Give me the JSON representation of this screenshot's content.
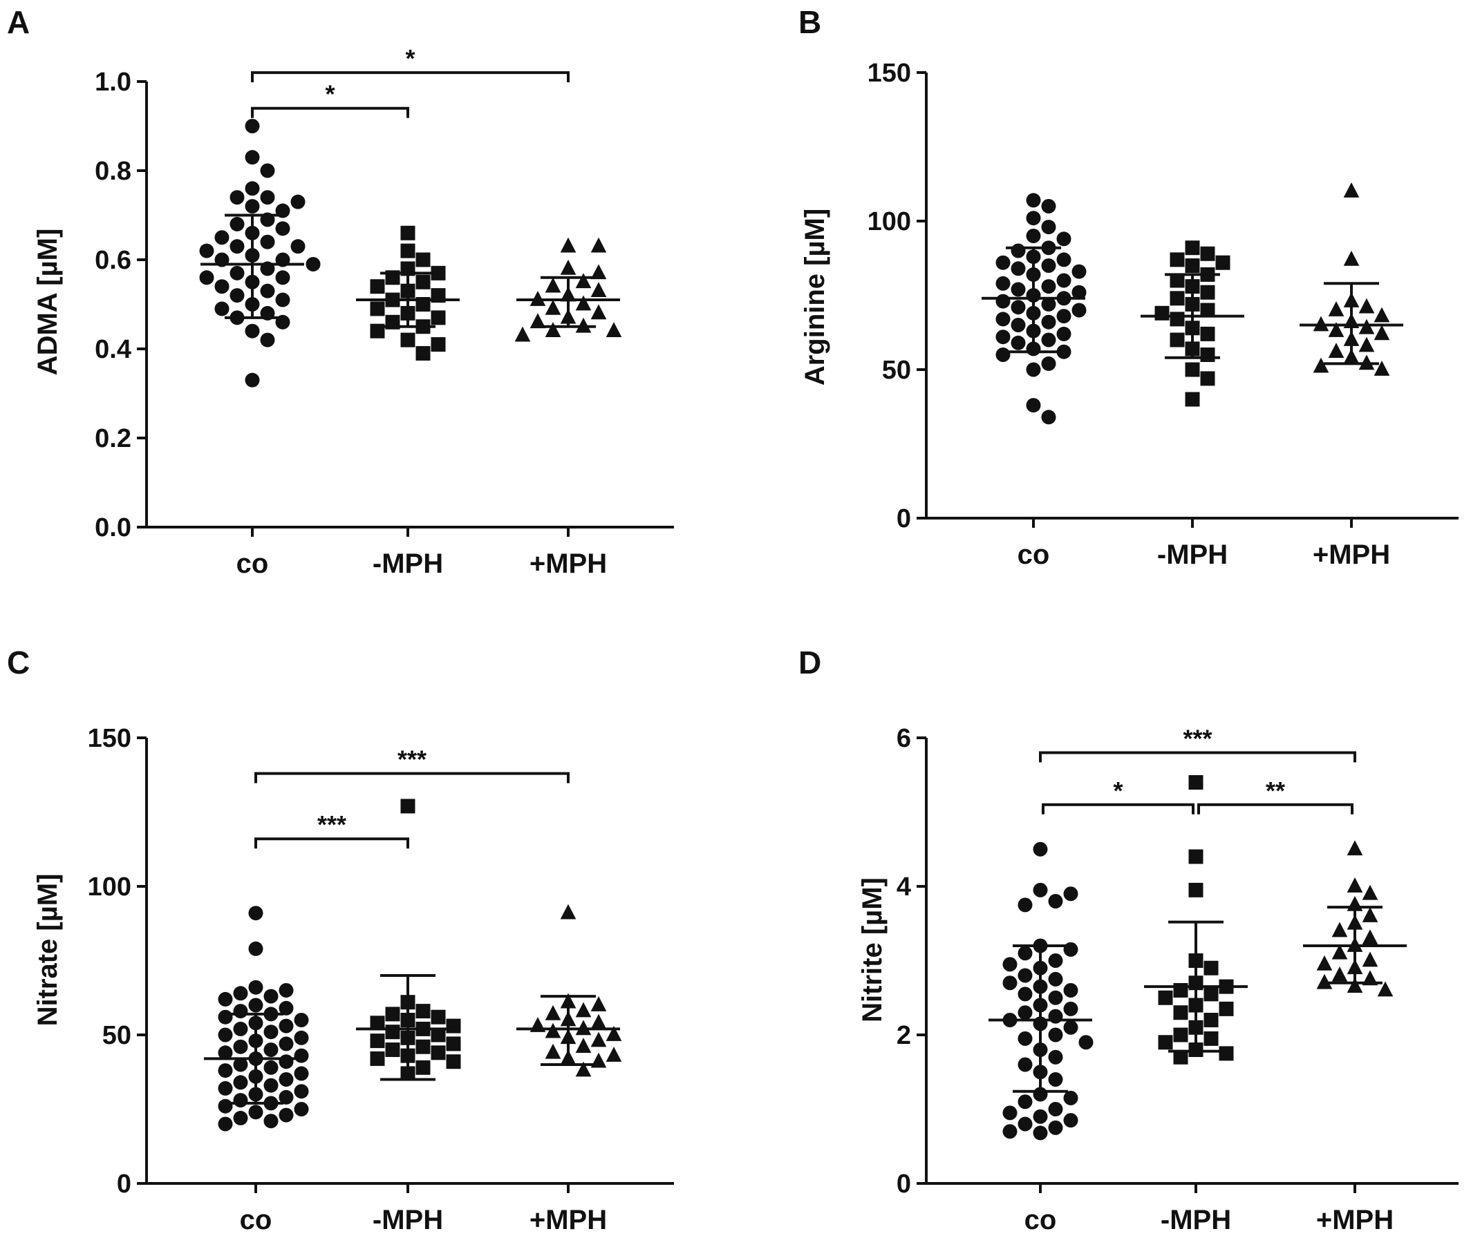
{
  "chart_data": [
    {
      "type": "scatter",
      "panel": "A",
      "ylabel": "ADMA [µM]",
      "xlabel": "",
      "ylim": [
        0,
        1.0
      ],
      "yticks": [
        0.0,
        0.2,
        0.4,
        0.6,
        0.8,
        1.0
      ],
      "ytick_labels": [
        "0.0",
        "0.2",
        "0.4",
        "0.6",
        "0.8",
        "1.0"
      ],
      "categories": [
        "co",
        "-MPH",
        "+MPH"
      ],
      "series": [
        {
          "name": "co",
          "marker": "circle",
          "values": [
            0.9,
            0.83,
            0.8,
            0.76,
            0.74,
            0.74,
            0.73,
            0.72,
            0.71,
            0.69,
            0.68,
            0.67,
            0.66,
            0.65,
            0.64,
            0.63,
            0.63,
            0.62,
            0.61,
            0.6,
            0.6,
            0.59,
            0.58,
            0.57,
            0.56,
            0.56,
            0.55,
            0.54,
            0.53,
            0.52,
            0.51,
            0.5,
            0.49,
            0.48,
            0.47,
            0.46,
            0.44,
            0.42,
            0.33
          ],
          "mean": 0.59,
          "sd_low": 0.47,
          "sd_high": 0.7
        },
        {
          "name": "-MPH",
          "marker": "square",
          "values": [
            0.66,
            0.62,
            0.6,
            0.58,
            0.57,
            0.56,
            0.55,
            0.54,
            0.53,
            0.52,
            0.51,
            0.5,
            0.49,
            0.48,
            0.47,
            0.46,
            0.45,
            0.44,
            0.42,
            0.41,
            0.39
          ],
          "mean": 0.51,
          "sd_low": 0.45,
          "sd_high": 0.57
        },
        {
          "name": "+MPH",
          "marker": "triangle",
          "values": [
            0.63,
            0.63,
            0.58,
            0.57,
            0.55,
            0.54,
            0.53,
            0.52,
            0.51,
            0.5,
            0.49,
            0.48,
            0.47,
            0.46,
            0.45,
            0.44,
            0.44,
            0.43
          ],
          "mean": 0.51,
          "sd_low": 0.45,
          "sd_high": 0.56
        }
      ],
      "significance": [
        {
          "from": "co",
          "to": "-MPH",
          "label": "*",
          "y": 0.94
        },
        {
          "from": "co",
          "to": "+MPH",
          "label": "*",
          "y": 1.02
        }
      ]
    },
    {
      "type": "scatter",
      "panel": "B",
      "ylabel": "Arginine [µM]",
      "xlabel": "",
      "ylim": [
        0,
        150
      ],
      "yticks": [
        0,
        50,
        100,
        150
      ],
      "ytick_labels": [
        "0",
        "50",
        "100",
        "150"
      ],
      "categories": [
        "co",
        "-MPH",
        "+MPH"
      ],
      "series": [
        {
          "name": "co",
          "marker": "circle",
          "values": [
            107,
            105,
            101,
            98,
            95,
            94,
            91,
            90,
            88,
            87,
            86,
            85,
            84,
            83,
            82,
            80,
            79,
            78,
            77,
            76,
            75,
            74,
            73,
            72,
            71,
            70,
            69,
            68,
            67,
            66,
            65,
            63,
            62,
            61,
            60,
            59,
            57,
            56,
            55,
            52,
            50,
            38,
            34
          ],
          "mean": 74,
          "sd_low": 56,
          "sd_high": 91
        },
        {
          "name": "-MPH",
          "marker": "square",
          "values": [
            91,
            89,
            87,
            86,
            85,
            82,
            80,
            78,
            76,
            74,
            72,
            70,
            69,
            67,
            64,
            62,
            60,
            57,
            55,
            50,
            47,
            40
          ],
          "mean": 68,
          "sd_low": 54,
          "sd_high": 82
        },
        {
          "name": "+MPH",
          "marker": "triangle",
          "values": [
            110,
            87,
            73,
            71,
            70,
            68,
            66,
            65,
            64,
            63,
            62,
            60,
            58,
            56,
            54,
            52,
            51,
            50
          ],
          "mean": 65,
          "sd_low": 52,
          "sd_high": 79
        }
      ],
      "significance": []
    },
    {
      "type": "scatter",
      "panel": "C",
      "ylabel": "Nitrate [µM]",
      "xlabel": "",
      "ylim": [
        0,
        150
      ],
      "yticks": [
        0,
        50,
        100,
        150
      ],
      "ytick_labels": [
        "0",
        "50",
        "100",
        "150"
      ],
      "categories": [
        "co",
        "-MPH",
        "+MPH"
      ],
      "series": [
        {
          "name": "co",
          "marker": "circle",
          "values": [
            91,
            79,
            66,
            65,
            64,
            63,
            62,
            60,
            59,
            58,
            57,
            56,
            55,
            54,
            53,
            52,
            51,
            50,
            49,
            48,
            47,
            46,
            45,
            44,
            43,
            42,
            41,
            40,
            39,
            38,
            37,
            36,
            35,
            34,
            33,
            32,
            31,
            30,
            29,
            28,
            27,
            26,
            25,
            24,
            23,
            22,
            21,
            20
          ],
          "mean": 42,
          "sd_low": 27,
          "sd_high": 57
        },
        {
          "name": "-MPH",
          "marker": "square",
          "values": [
            127,
            61,
            58,
            57,
            56,
            55,
            54,
            53,
            52,
            51,
            50,
            49,
            48,
            47,
            46,
            45,
            44,
            43,
            42,
            41,
            39,
            37
          ],
          "mean": 52,
          "sd_low": 35,
          "sd_high": 70
        },
        {
          "name": "+MPH",
          "marker": "triangle",
          "values": [
            91,
            61,
            60,
            58,
            57,
            55,
            54,
            53,
            52,
            51,
            50,
            49,
            48,
            46,
            44,
            43,
            42,
            41,
            38
          ],
          "mean": 52,
          "sd_low": 40,
          "sd_high": 63
        }
      ],
      "significance": [
        {
          "from": "co",
          "to": "-MPH",
          "label": "***",
          "y": 116
        },
        {
          "from": "co",
          "to": "+MPH",
          "label": "***",
          "y": 138
        }
      ]
    },
    {
      "type": "scatter",
      "panel": "D",
      "ylabel": "Nitrite [µM]",
      "xlabel": "",
      "ylim": [
        0,
        6
      ],
      "yticks": [
        0,
        2,
        4,
        6
      ],
      "ytick_labels": [
        "0",
        "2",
        "4",
        "6"
      ],
      "categories": [
        "co",
        "-MPH",
        "+MPH"
      ],
      "series": [
        {
          "name": "co",
          "marker": "circle",
          "values": [
            4.5,
            3.95,
            3.9,
            3.8,
            3.75,
            3.2,
            3.15,
            3.1,
            3.0,
            2.95,
            2.9,
            2.8,
            2.75,
            2.7,
            2.65,
            2.6,
            2.55,
            2.5,
            2.4,
            2.35,
            2.3,
            2.25,
            2.2,
            2.15,
            2.1,
            2.0,
            1.95,
            1.9,
            1.8,
            1.7,
            1.6,
            1.5,
            1.4,
            1.2,
            1.15,
            1.1,
            1.0,
            0.95,
            0.9,
            0.85,
            0.8,
            0.75,
            0.7,
            0.68
          ],
          "mean": 2.2,
          "sd_low": 1.24,
          "sd_high": 3.2
        },
        {
          "name": "-MPH",
          "marker": "square",
          "values": [
            5.4,
            4.4,
            3.95,
            3.0,
            2.9,
            2.7,
            2.65,
            2.6,
            2.55,
            2.5,
            2.4,
            2.35,
            2.3,
            2.2,
            2.1,
            2.0,
            1.95,
            1.9,
            1.8,
            1.75,
            1.7
          ],
          "mean": 2.65,
          "sd_low": 1.78,
          "sd_high": 3.52
        },
        {
          "name": "+MPH",
          "marker": "triangle",
          "values": [
            4.5,
            4.0,
            3.9,
            3.75,
            3.6,
            3.5,
            3.4,
            3.3,
            3.2,
            3.1,
            3.0,
            2.95,
            2.9,
            2.8,
            2.75,
            2.7,
            2.65,
            2.6
          ],
          "mean": 3.2,
          "sd_low": 2.7,
          "sd_high": 3.72
        }
      ],
      "significance": [
        {
          "from": "co",
          "to": "-MPH",
          "label": "*",
          "y": 5.1
        },
        {
          "from": "-MPH",
          "to": "+MPH",
          "label": "**",
          "y": 5.1
        },
        {
          "from": "co",
          "to": "+MPH",
          "label": "***",
          "y": 5.8
        }
      ]
    }
  ]
}
